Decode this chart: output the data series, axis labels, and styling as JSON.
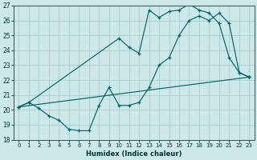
{
  "xlabel": "Humidex (Indice chaleur)",
  "bg_color": "#cce8e8",
  "grid_color": "#aacccc",
  "line_color": "#006666",
  "xlim": [
    -0.5,
    23.5
  ],
  "ylim": [
    18,
    27
  ],
  "xticks": [
    0,
    1,
    2,
    3,
    4,
    5,
    6,
    7,
    8,
    9,
    10,
    11,
    12,
    13,
    14,
    15,
    16,
    17,
    18,
    19,
    20,
    21,
    22,
    23
  ],
  "yticks": [
    18,
    19,
    20,
    21,
    22,
    23,
    24,
    25,
    26,
    27
  ],
  "line1_x": [
    0,
    1,
    10,
    11,
    12,
    13,
    14,
    15,
    16,
    17,
    18,
    19,
    20,
    21,
    22,
    23
  ],
  "line1_y": [
    20.2,
    20.5,
    24.8,
    24.2,
    23.8,
    26.7,
    26.2,
    26.6,
    26.7,
    27.1,
    26.7,
    26.5,
    25.8,
    23.5,
    22.5,
    22.2
  ],
  "line2_x": [
    0,
    1,
    2,
    3,
    4,
    5,
    6,
    7,
    8,
    9,
    10,
    11,
    12,
    13,
    14,
    15,
    16,
    17,
    18,
    19,
    20,
    21,
    22,
    23
  ],
  "line2_y": [
    20.2,
    20.5,
    20.1,
    19.6,
    19.3,
    18.7,
    18.6,
    18.6,
    20.3,
    21.5,
    20.3,
    20.3,
    20.5,
    21.5,
    23.0,
    23.5,
    25.0,
    26.0,
    26.3,
    26.0,
    26.5,
    25.8,
    22.5,
    22.2
  ],
  "line3_x": [
    0,
    23
  ],
  "line3_y": [
    20.2,
    22.2
  ]
}
